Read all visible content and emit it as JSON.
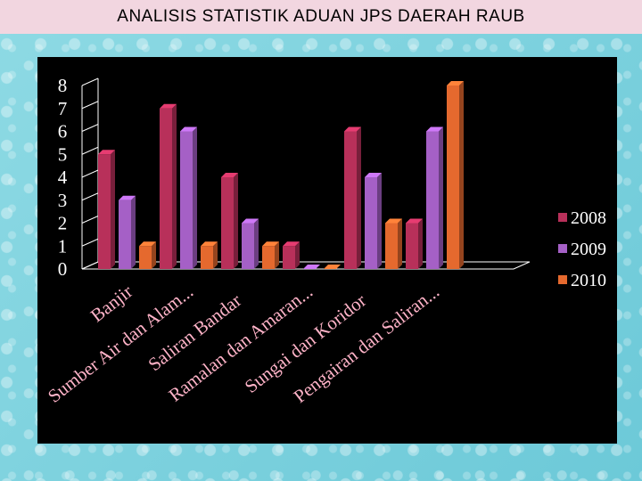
{
  "page": {
    "title": "ANALISIS STATISTIK ADUAN JPS DAERAH RAUB"
  },
  "chart_data": {
    "type": "bar",
    "categories": [
      "Banjir",
      "Sumber Air dan Alam...",
      "Saliran Bandar",
      "Ramalan dan Amaran...",
      "Sungai dan Koridor",
      "Pengairan dan Saliran..."
    ],
    "series": [
      {
        "name": "2008",
        "values": [
          5,
          7,
          4,
          1,
          6,
          2
        ],
        "color": "#b8305a"
      },
      {
        "name": "2009",
        "values": [
          3,
          6,
          2,
          0,
          4,
          6
        ],
        "color": "#a560c6"
      },
      {
        "name": "2010",
        "values": [
          1,
          1,
          1,
          0,
          2,
          8
        ],
        "color": "#e5692e"
      }
    ],
    "y_ticks": [
      "0",
      "1",
      "2",
      "3",
      "4",
      "5",
      "6",
      "7",
      "8"
    ],
    "ylim": [
      0,
      8
    ],
    "title": "",
    "xlabel": "",
    "ylabel": "",
    "legend_position": "right",
    "style": "3d-column"
  }
}
